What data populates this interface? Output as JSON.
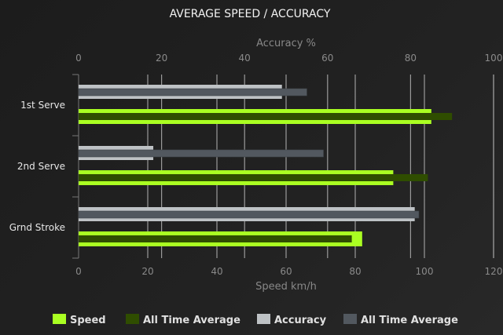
{
  "chart_data": {
    "type": "bar",
    "orientation": "horizontal",
    "title": "AVERAGE SPEED / ACCURACY",
    "categories": [
      "1st Serve",
      "2nd Serve",
      "Grnd Stroke"
    ],
    "top_axis": {
      "label": "Accuracy %",
      "range": [
        0,
        100
      ],
      "ticks": [
        0,
        20,
        40,
        60,
        80,
        100
      ]
    },
    "bottom_axis": {
      "label": "Speed km/h",
      "range": [
        0,
        120
      ],
      "ticks": [
        0,
        20,
        40,
        60,
        80,
        100,
        120
      ]
    },
    "grid": true,
    "legend_placement": "bottom",
    "series": [
      {
        "name": "Speed",
        "axis": "bottom",
        "color": "#aaff22",
        "values": [
          102,
          91,
          82
        ]
      },
      {
        "name": "All Time Average",
        "axis": "bottom",
        "color": "#2f4d00",
        "values": [
          108,
          101,
          79
        ]
      },
      {
        "name": "Accuracy",
        "axis": "top",
        "color": "#bec2c5",
        "values": [
          49,
          18,
          81
        ]
      },
      {
        "name": "All Time Average",
        "axis": "top",
        "color": "#52585f",
        "values": [
          55,
          59,
          82
        ]
      }
    ]
  }
}
